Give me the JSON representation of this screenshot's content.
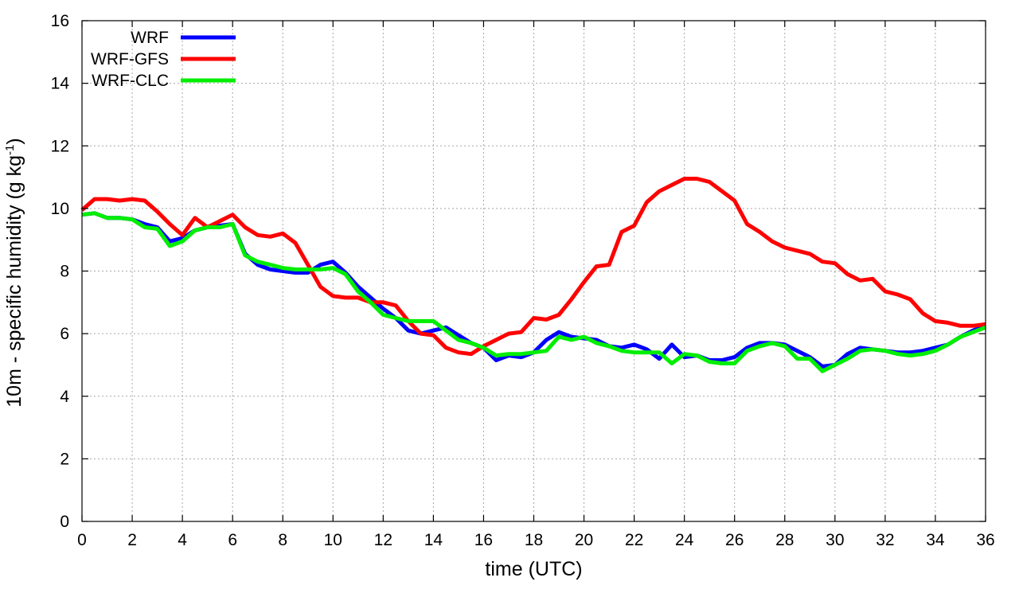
{
  "chart_data": {
    "type": "line",
    "xlabel": "time (UTC)",
    "ylabel": {
      "main": "10m - specific humidity (g kg",
      "sup": "-1",
      "close": ")"
    },
    "xlim": [
      0,
      36
    ],
    "ylim": [
      0,
      16
    ],
    "xticks": [
      0,
      2,
      4,
      6,
      8,
      10,
      12,
      14,
      16,
      18,
      20,
      22,
      24,
      26,
      28,
      30,
      32,
      34,
      36
    ],
    "yticks": [
      0,
      2,
      4,
      6,
      8,
      10,
      12,
      14,
      16
    ],
    "grid": true,
    "legend_position": "top-left",
    "series": [
      {
        "name": "WRF",
        "color": "#0000ff",
        "x": [
          0,
          0.5,
          1,
          1.5,
          2,
          2.5,
          3,
          3.5,
          4,
          4.5,
          5,
          5.5,
          6,
          6.5,
          7,
          7.5,
          8,
          8.5,
          9,
          9.5,
          10,
          10.5,
          11,
          11.5,
          12,
          12.5,
          13,
          13.5,
          14,
          14.5,
          15,
          15.5,
          16,
          16.5,
          17,
          17.5,
          18,
          18.5,
          19,
          19.5,
          20,
          20.5,
          21,
          21.5,
          22,
          22.5,
          23,
          23.5,
          24,
          24.5,
          25,
          25.5,
          26,
          26.5,
          27,
          27.5,
          28,
          28.5,
          29,
          29.5,
          30,
          30.5,
          31,
          31.5,
          32,
          32.5,
          33,
          33.5,
          34,
          34.5,
          35,
          35.5,
          36
        ],
        "y": [
          9.8,
          9.85,
          9.7,
          9.7,
          9.65,
          9.5,
          9.4,
          8.95,
          9.05,
          9.3,
          9.4,
          9.45,
          9.5,
          8.55,
          8.2,
          8.05,
          8.0,
          7.95,
          7.95,
          8.2,
          8.3,
          7.95,
          7.5,
          7.15,
          6.8,
          6.5,
          6.1,
          6.0,
          6.1,
          6.2,
          5.95,
          5.7,
          5.55,
          5.15,
          5.3,
          5.25,
          5.4,
          5.8,
          6.05,
          5.9,
          5.85,
          5.8,
          5.6,
          5.55,
          5.65,
          5.5,
          5.2,
          5.65,
          5.25,
          5.3,
          5.15,
          5.15,
          5.25,
          5.55,
          5.7,
          5.7,
          5.65,
          5.45,
          5.25,
          4.95,
          5.0,
          5.35,
          5.55,
          5.5,
          5.45,
          5.4,
          5.4,
          5.45,
          5.55,
          5.65,
          5.9,
          6.1,
          6.25
        ]
      },
      {
        "name": "WRF-GFS",
        "color": "#ff0000",
        "x": [
          0,
          0.5,
          1,
          1.5,
          2,
          2.5,
          3,
          3.5,
          4,
          4.5,
          5,
          5.5,
          6,
          6.5,
          7,
          7.5,
          8,
          8.5,
          9,
          9.5,
          10,
          10.5,
          11,
          11.5,
          12,
          12.5,
          13,
          13.5,
          14,
          14.5,
          15,
          15.5,
          16,
          16.5,
          17,
          17.5,
          18,
          18.5,
          19,
          19.5,
          20,
          20.5,
          21,
          21.5,
          22,
          22.5,
          23,
          23.5,
          24,
          24.5,
          25,
          25.5,
          26,
          26.5,
          27,
          27.5,
          28,
          28.5,
          29,
          29.5,
          30,
          30.5,
          31,
          31.5,
          32,
          32.5,
          33,
          33.5,
          34,
          34.5,
          35,
          35.5,
          36
        ],
        "y": [
          9.95,
          10.3,
          10.3,
          10.25,
          10.3,
          10.25,
          9.9,
          9.5,
          9.15,
          9.7,
          9.4,
          9.6,
          9.8,
          9.4,
          9.15,
          9.1,
          9.2,
          8.9,
          8.2,
          7.5,
          7.2,
          7.15,
          7.15,
          7.0,
          7.0,
          6.9,
          6.4,
          6.0,
          5.95,
          5.55,
          5.4,
          5.35,
          5.6,
          5.8,
          6.0,
          6.05,
          6.5,
          6.45,
          6.6,
          7.1,
          7.65,
          8.15,
          8.2,
          9.25,
          9.45,
          10.2,
          10.55,
          10.75,
          10.95,
          10.95,
          10.85,
          10.55,
          10.25,
          9.5,
          9.25,
          8.95,
          8.75,
          8.65,
          8.55,
          8.3,
          8.25,
          7.9,
          7.7,
          7.75,
          7.35,
          7.25,
          7.1,
          6.65,
          6.4,
          6.35,
          6.25,
          6.25,
          6.3
        ]
      },
      {
        "name": "WRF-CLC",
        "color": "#00ee00",
        "x": [
          0,
          0.5,
          1,
          1.5,
          2,
          2.5,
          3,
          3.5,
          4,
          4.5,
          5,
          5.5,
          6,
          6.5,
          7,
          7.5,
          8,
          8.5,
          9,
          9.5,
          10,
          10.5,
          11,
          11.5,
          12,
          12.5,
          13,
          13.5,
          14,
          14.5,
          15,
          15.5,
          16,
          16.5,
          17,
          17.5,
          18,
          18.5,
          19,
          19.5,
          20,
          20.5,
          21,
          21.5,
          22,
          22.5,
          23,
          23.5,
          24,
          24.5,
          25,
          25.5,
          26,
          26.5,
          27,
          27.5,
          28,
          28.5,
          29,
          29.5,
          30,
          30.5,
          31,
          31.5,
          32,
          32.5,
          33,
          33.5,
          34,
          34.5,
          35,
          35.5,
          36
        ],
        "y": [
          9.8,
          9.85,
          9.7,
          9.7,
          9.65,
          9.4,
          9.35,
          8.8,
          8.95,
          9.3,
          9.4,
          9.4,
          9.5,
          8.5,
          8.3,
          8.2,
          8.1,
          8.05,
          8.05,
          8.05,
          8.1,
          7.9,
          7.35,
          7.0,
          6.6,
          6.5,
          6.4,
          6.4,
          6.4,
          6.1,
          5.8,
          5.7,
          5.55,
          5.3,
          5.35,
          5.35,
          5.4,
          5.45,
          5.9,
          5.8,
          5.9,
          5.7,
          5.6,
          5.45,
          5.4,
          5.4,
          5.4,
          5.05,
          5.35,
          5.3,
          5.1,
          5.05,
          5.05,
          5.45,
          5.6,
          5.7,
          5.6,
          5.2,
          5.2,
          4.8,
          5.0,
          5.2,
          5.45,
          5.5,
          5.45,
          5.35,
          5.3,
          5.35,
          5.45,
          5.65,
          5.9,
          6.05,
          6.2
        ]
      }
    ]
  }
}
